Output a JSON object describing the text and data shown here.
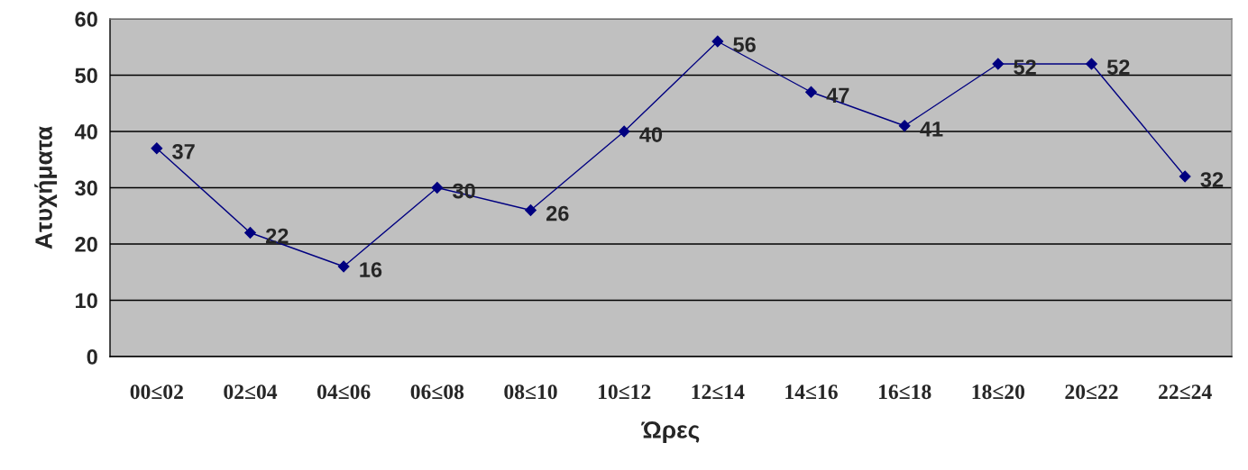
{
  "chart_data": {
    "type": "line",
    "xlabel": "Ώρες",
    "ylabel": "Ατυχήματα",
    "categories": [
      "00≤02",
      "02≤04",
      "04≤06",
      "06≤08",
      "08≤10",
      "10≤12",
      "12≤14",
      "14≤16",
      "16≤18",
      "18≤20",
      "20≤22",
      "22≤24"
    ],
    "series": [
      {
        "color": "#000080",
        "values": [
          37,
          22,
          16,
          30,
          26,
          40,
          56,
          47,
          41,
          52,
          52,
          32
        ]
      }
    ],
    "ylim": [
      0,
      60
    ],
    "yticks": [
      0,
      10,
      20,
      30,
      40,
      50,
      60
    ],
    "grid": "y",
    "marker": "diamond",
    "line_style": "solid",
    "data_labels": true
  }
}
